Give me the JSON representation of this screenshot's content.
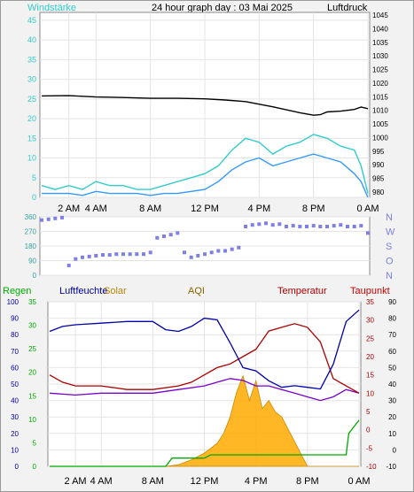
{
  "header": {
    "left_label": "Windstärke",
    "title": "24 hour graph day : 03 Mai 2025",
    "right_label": "Luftdruck"
  },
  "legend2": {
    "regen": "Regen",
    "luftfeuchte": "Luftfeuchte",
    "solar": "Solar",
    "aqi": "AQI",
    "temperatur": "Temperatur",
    "taupunkt": "Taupunkt"
  },
  "colors": {
    "wind_avg": "#3399ff",
    "wind_gust": "#33cccc",
    "pressure": "#000000",
    "direction": "#7f7fe6",
    "humidity": "#0000aa",
    "temperature": "#aa0000",
    "dewpoint": "#7700cc",
    "solar": "#ffaa00",
    "rain": "#00aa00",
    "regen_label": "#00aa00",
    "luftfeuchte_label": "#000099",
    "solar_label": "#b8860b",
    "aqi_label": "#886600",
    "temp_label": "#aa0000",
    "taupunkt_label": "#cc0000"
  },
  "chart_data": [
    {
      "type": "line",
      "id": "wind_pressure",
      "x_ticks": [
        "2 AM",
        "4 AM",
        "8 AM",
        "12 PM",
        "4 PM",
        "8 PM",
        "0 AM"
      ],
      "x_tick_hours": [
        2,
        4,
        8,
        12,
        16,
        20,
        24
      ],
      "ylim_left": [
        0,
        47
      ],
      "y_ticks_left": [
        "0",
        "5",
        "10",
        "15",
        "20",
        "25",
        "30",
        "35",
        "40",
        "45"
      ],
      "ylim_right": [
        978,
        1046
      ],
      "y_ticks_right": [
        "980",
        "985",
        "990",
        "995",
        "1000",
        "1005",
        "1010",
        "1015",
        "1020",
        "1025",
        "1030",
        "1035",
        "1040",
        "1045"
      ],
      "series": [
        {
          "hours": [
            0,
            2,
            4,
            6,
            8,
            10,
            12,
            13.5,
            15,
            17,
            19,
            20,
            20.5,
            21,
            22,
            23,
            23.5,
            24
          ],
          "values": [
            1015.3,
            1015.4,
            1014.9,
            1014.7,
            1014.4,
            1014.4,
            1014.2,
            1013.8,
            1013.2,
            1011.3,
            1009.1,
            1008.2,
            1008.4,
            1009.4,
            1009.7,
            1010.3,
            1011.2,
            1010.6
          ]
        },
        {
          "hours": [
            0,
            1,
            2,
            3,
            4,
            5,
            6,
            7,
            8,
            9,
            10,
            11,
            12,
            13,
            14,
            15,
            16,
            17,
            18,
            19,
            20,
            21,
            22,
            23,
            23.5,
            24
          ],
          "values": [
            1,
            1,
            1,
            0.5,
            1.5,
            1,
            1,
            1,
            0.5,
            1,
            1,
            1.5,
            2,
            4,
            7,
            9,
            10,
            8,
            9,
            10,
            11,
            10,
            9,
            6,
            4,
            0
          ]
        },
        {
          "hours": [
            0,
            1,
            2,
            3,
            4,
            5,
            6,
            7,
            8,
            9,
            10,
            11,
            12,
            13,
            14,
            15,
            16,
            17,
            18,
            19,
            20,
            21,
            22,
            23,
            23.5,
            24
          ],
          "values": [
            3,
            2,
            3,
            2,
            4,
            3,
            3,
            2,
            2,
            3,
            4,
            5,
            6,
            8,
            12,
            15,
            14,
            11,
            13,
            14,
            16,
            15,
            13,
            12,
            8,
            1
          ]
        }
      ]
    },
    {
      "type": "scatter",
      "id": "wind_direction",
      "x_ticks": [
        "2 AM",
        "4 AM",
        "8 AM",
        "12 PM",
        "4 PM",
        "8 PM",
        "0 AM"
      ],
      "ylim": [
        0,
        360
      ],
      "y_ticks": [
        "0",
        "90",
        "180",
        "270",
        "360"
      ],
      "compass": [
        "N",
        "W",
        "S",
        "O",
        "N"
      ],
      "hours": [
        0,
        0.5,
        1,
        1.5,
        2,
        2.5,
        3,
        3.5,
        4,
        4.5,
        5,
        5.5,
        6,
        6.5,
        7,
        7.5,
        8,
        8.5,
        9,
        9.5,
        10,
        10.5,
        11,
        11.5,
        12,
        12.5,
        13,
        13.5,
        14,
        14.5,
        15,
        15.5,
        16,
        16.5,
        17,
        17.5,
        18,
        18.5,
        19,
        19.5,
        20,
        20.5,
        21,
        21.5,
        22,
        22.5,
        23,
        23.5,
        24
      ],
      "values": [
        340,
        345,
        350,
        355,
        60,
        100,
        110,
        115,
        120,
        125,
        125,
        130,
        130,
        130,
        130,
        130,
        140,
        230,
        240,
        250,
        260,
        140,
        110,
        120,
        130,
        140,
        150,
        150,
        160,
        170,
        300,
        310,
        315,
        320,
        310,
        315,
        300,
        305,
        300,
        300,
        305,
        300,
        300,
        305,
        310,
        300,
        300,
        305,
        260
      ]
    },
    {
      "type": "line",
      "id": "multi",
      "x_ticks": [
        "2 AM",
        "4 AM",
        "8 AM",
        "12 PM",
        "4 PM",
        "8 PM",
        "0 AM"
      ],
      "y_ticks_regen": [
        "0",
        "10",
        "20",
        "30",
        "40",
        "50",
        "60",
        "70",
        "80",
        "90",
        "100"
      ],
      "y_ticks_feuchte": [
        "0",
        "5",
        "10",
        "15",
        "20",
        "25",
        "30",
        "35"
      ],
      "y_ticks_temp": [
        "-10",
        "-5",
        "0",
        "5",
        "10",
        "15",
        "20",
        "25",
        "30",
        "35"
      ],
      "y_ticks_taupunkt": [
        "-10",
        "0",
        "10",
        "20",
        "30",
        "40",
        "50",
        "60",
        "70",
        "80",
        "90"
      ],
      "humidity": {
        "hours": [
          0,
          1,
          2,
          4,
          6,
          8,
          9,
          10,
          11,
          12,
          13,
          14,
          15,
          16,
          17,
          18,
          19,
          20,
          21,
          22,
          23,
          24
        ],
        "values": [
          82,
          85,
          86,
          87,
          88,
          88,
          83,
          82,
          85,
          90,
          89,
          75,
          60,
          58,
          52,
          48,
          49,
          48,
          47,
          62,
          88,
          95
        ]
      },
      "temperature": {
        "hours": [
          0,
          1,
          2,
          4,
          6,
          8,
          10,
          11,
          12,
          13,
          14,
          15,
          16,
          17,
          18,
          19,
          20,
          21,
          22,
          23,
          24
        ],
        "values": [
          15,
          13,
          12,
          12,
          11,
          11,
          12,
          13,
          15,
          17,
          18,
          20,
          22,
          27,
          28,
          29,
          28,
          24,
          14,
          12,
          10
        ]
      },
      "dewpoint": {
        "hours": [
          0,
          2,
          4,
          6,
          8,
          10,
          12,
          13,
          14,
          15,
          16,
          17,
          18,
          19,
          20,
          21,
          22,
          23,
          24
        ],
        "values": [
          10,
          9.5,
          10,
          10,
          10,
          11,
          12,
          13,
          14,
          13.5,
          12,
          12,
          11,
          10,
          9,
          8,
          9,
          11,
          10
        ]
      },
      "solar": {
        "hours": [
          0,
          9,
          10,
          11,
          12,
          13,
          13.5,
          14,
          14.5,
          15,
          15.5,
          16,
          16.5,
          17,
          17.5,
          18,
          19,
          20,
          24
        ],
        "values": [
          0,
          0,
          1,
          4,
          8,
          14,
          20,
          30,
          45,
          55,
          40,
          52,
          35,
          40,
          33,
          30,
          15,
          0,
          0
        ]
      },
      "rain": {
        "hours": [
          0,
          9,
          9.5,
          12,
          12.5,
          23,
          23.2,
          24
        ],
        "values": [
          0,
          0,
          5,
          5,
          7,
          7,
          20,
          28
        ]
      }
    }
  ]
}
